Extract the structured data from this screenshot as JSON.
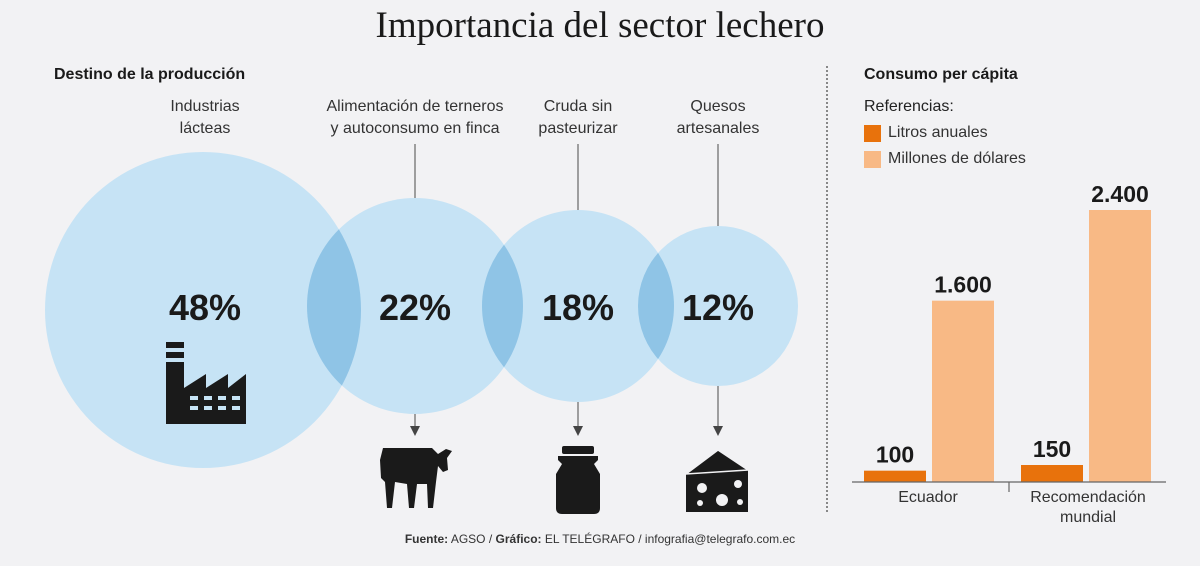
{
  "title": "Importancia del sector lechero",
  "left_panel": {
    "title": "Destino de la producción"
  },
  "right_panel": {
    "title": "Consumo per cápita",
    "legend_title": "Referencias:",
    "legend": [
      {
        "label": "Litros anuales",
        "color": "#e8720c"
      },
      {
        "label": "Millones de dólares",
        "color": "#f8b985"
      }
    ]
  },
  "chart_data": [
    {
      "type": "venn-bubble",
      "title": "Destino de la producción",
      "categories": [
        "Industrias lácteas",
        "Alimentación de terneros y autoconsumo en finca",
        "Cruda sin pasteurizar",
        "Quesos artesanales"
      ],
      "category_lines": [
        [
          "Industrias",
          "lácteas"
        ],
        [
          "Alimentación de terneros",
          "y autoconsumo en finca"
        ],
        [
          "Cruda sin",
          "pasteurizar"
        ],
        [
          "Quesos",
          "artesanales"
        ]
      ],
      "values": [
        48,
        22,
        18,
        12
      ],
      "value_labels": [
        "48%",
        "22%",
        "18%",
        "12%"
      ],
      "icons": [
        "factory-icon",
        "cow-icon",
        "milk-jug-icon",
        "cheese-icon"
      ],
      "colors": {
        "circle": "#c6e3f5",
        "overlap": "#8fc4e6"
      }
    },
    {
      "type": "bar",
      "title": "Consumo per cápita",
      "categories": [
        "Ecuador",
        "Recomendación mundial"
      ],
      "category_lines": [
        [
          "Ecuador"
        ],
        [
          "Recomendación",
          "mundial"
        ]
      ],
      "series": [
        {
          "name": "Litros anuales",
          "values": [
            100,
            150
          ],
          "value_labels": [
            "100",
            "150"
          ],
          "color": "#e8720c"
        },
        {
          "name": "Millones de dólares",
          "values": [
            1600,
            2400
          ],
          "value_labels": [
            "1.600",
            "2.400"
          ],
          "color": "#f8b985"
        }
      ],
      "ylim": [
        0,
        2400
      ],
      "grid": false,
      "legend_position": "top-left"
    }
  ],
  "source": {
    "fuente_label": "Fuente:",
    "fuente_value": "AGSO /",
    "grafico_label": "Gráfico:",
    "grafico_value": "EL TELÉGRAFO / infografia@telegrafo.com.ec"
  }
}
